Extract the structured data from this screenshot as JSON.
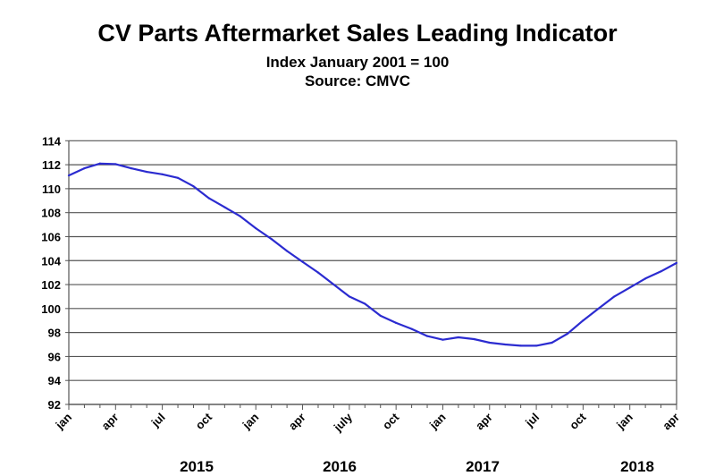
{
  "chart_data": {
    "type": "line",
    "title": "CV Parts Aftermarket Sales Leading Indicator",
    "subtitle": [
      "Index January 2001 = 100",
      "Source: CMVC"
    ],
    "xlabel": "",
    "ylabel": "",
    "ylim": [
      92,
      114
    ],
    "yticks": [
      "92",
      "94",
      "96",
      "98",
      "100",
      "102",
      "104",
      "106",
      "108",
      "110",
      "112",
      "114"
    ],
    "grid": "horizontal",
    "line_color": "#2b2bd0",
    "x_tick_labels": [
      "jan",
      "apr",
      "jul",
      "oct",
      "jan",
      "apr",
      "july",
      "oct",
      "jan",
      "apr",
      "jul",
      "oct",
      "jan",
      "apr"
    ],
    "year_labels": [
      "2015",
      "2016",
      "2017",
      "2018"
    ],
    "x": [
      "2015-01",
      "2015-02",
      "2015-03",
      "2015-04",
      "2015-05",
      "2015-06",
      "2015-07",
      "2015-08",
      "2015-09",
      "2015-10",
      "2015-11",
      "2015-12",
      "2016-01",
      "2016-02",
      "2016-03",
      "2016-04",
      "2016-05",
      "2016-06",
      "2016-07",
      "2016-08",
      "2016-09",
      "2016-10",
      "2016-11",
      "2016-12",
      "2017-01",
      "2017-02",
      "2017-03",
      "2017-04",
      "2017-05",
      "2017-06",
      "2017-07",
      "2017-08",
      "2017-09",
      "2017-10",
      "2017-11",
      "2017-12",
      "2018-01",
      "2018-02",
      "2018-03",
      "2018-04"
    ],
    "series": [
      {
        "values": [
          111.1,
          111.7,
          112.1,
          112.05,
          111.7,
          111.4,
          111.2,
          110.9,
          110.2,
          109.2,
          108.45,
          107.7,
          106.7,
          105.8,
          104.8,
          103.9,
          103.0,
          102.0,
          101.0,
          100.4,
          99.4,
          98.8,
          98.3,
          97.7,
          97.4,
          97.6,
          97.45,
          97.15,
          97.0,
          96.9,
          96.9,
          97.15,
          97.9,
          99.0,
          100.0,
          101.0,
          101.75,
          102.5,
          103.1,
          103.8
        ]
      }
    ]
  }
}
